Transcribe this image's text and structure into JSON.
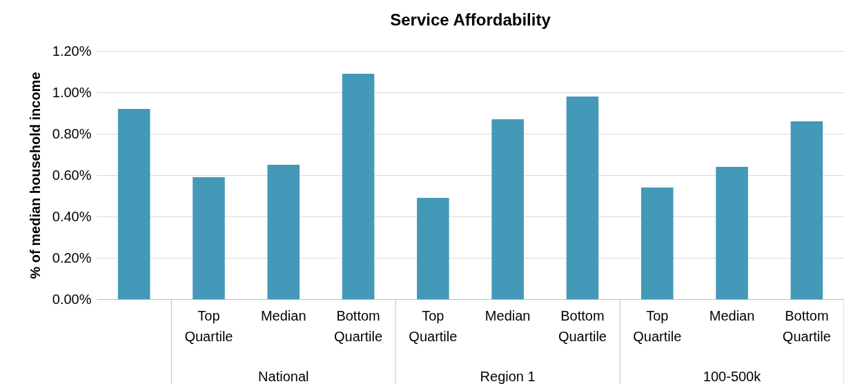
{
  "chart_data": {
    "type": "bar",
    "title": "Service Affordability",
    "ylabel": "% of median household income",
    "categories": [
      null,
      "Top Quartile",
      "Median",
      "Bottom Quartile",
      "Top Quartile",
      "Median",
      "Bottom Quartile",
      "Top Quartile",
      "Median",
      "Bottom Quartile"
    ],
    "values": [
      0.92,
      0.59,
      0.65,
      1.09,
      0.49,
      0.87,
      0.98,
      0.54,
      0.64,
      0.86
    ],
    "color": "#4499b8",
    "annotations": [
      "National",
      "Region 1",
      "100-500k"
    ],
    "ylim": [
      0,
      1.2
    ],
    "yticks": [
      {
        "value": 0,
        "label": "0.00%"
      },
      {
        "value": 0.2,
        "label": "0.20%"
      },
      {
        "value": 0.4,
        "label": "0.40%"
      },
      {
        "value": 0.6,
        "label": "0.60%"
      },
      {
        "value": 0.8,
        "label": "0.80%"
      },
      {
        "value": 1.0,
        "label": "1.00%"
      },
      {
        "value": 1.2,
        "label": "1.20%"
      }
    ],
    "grid": "y"
  }
}
